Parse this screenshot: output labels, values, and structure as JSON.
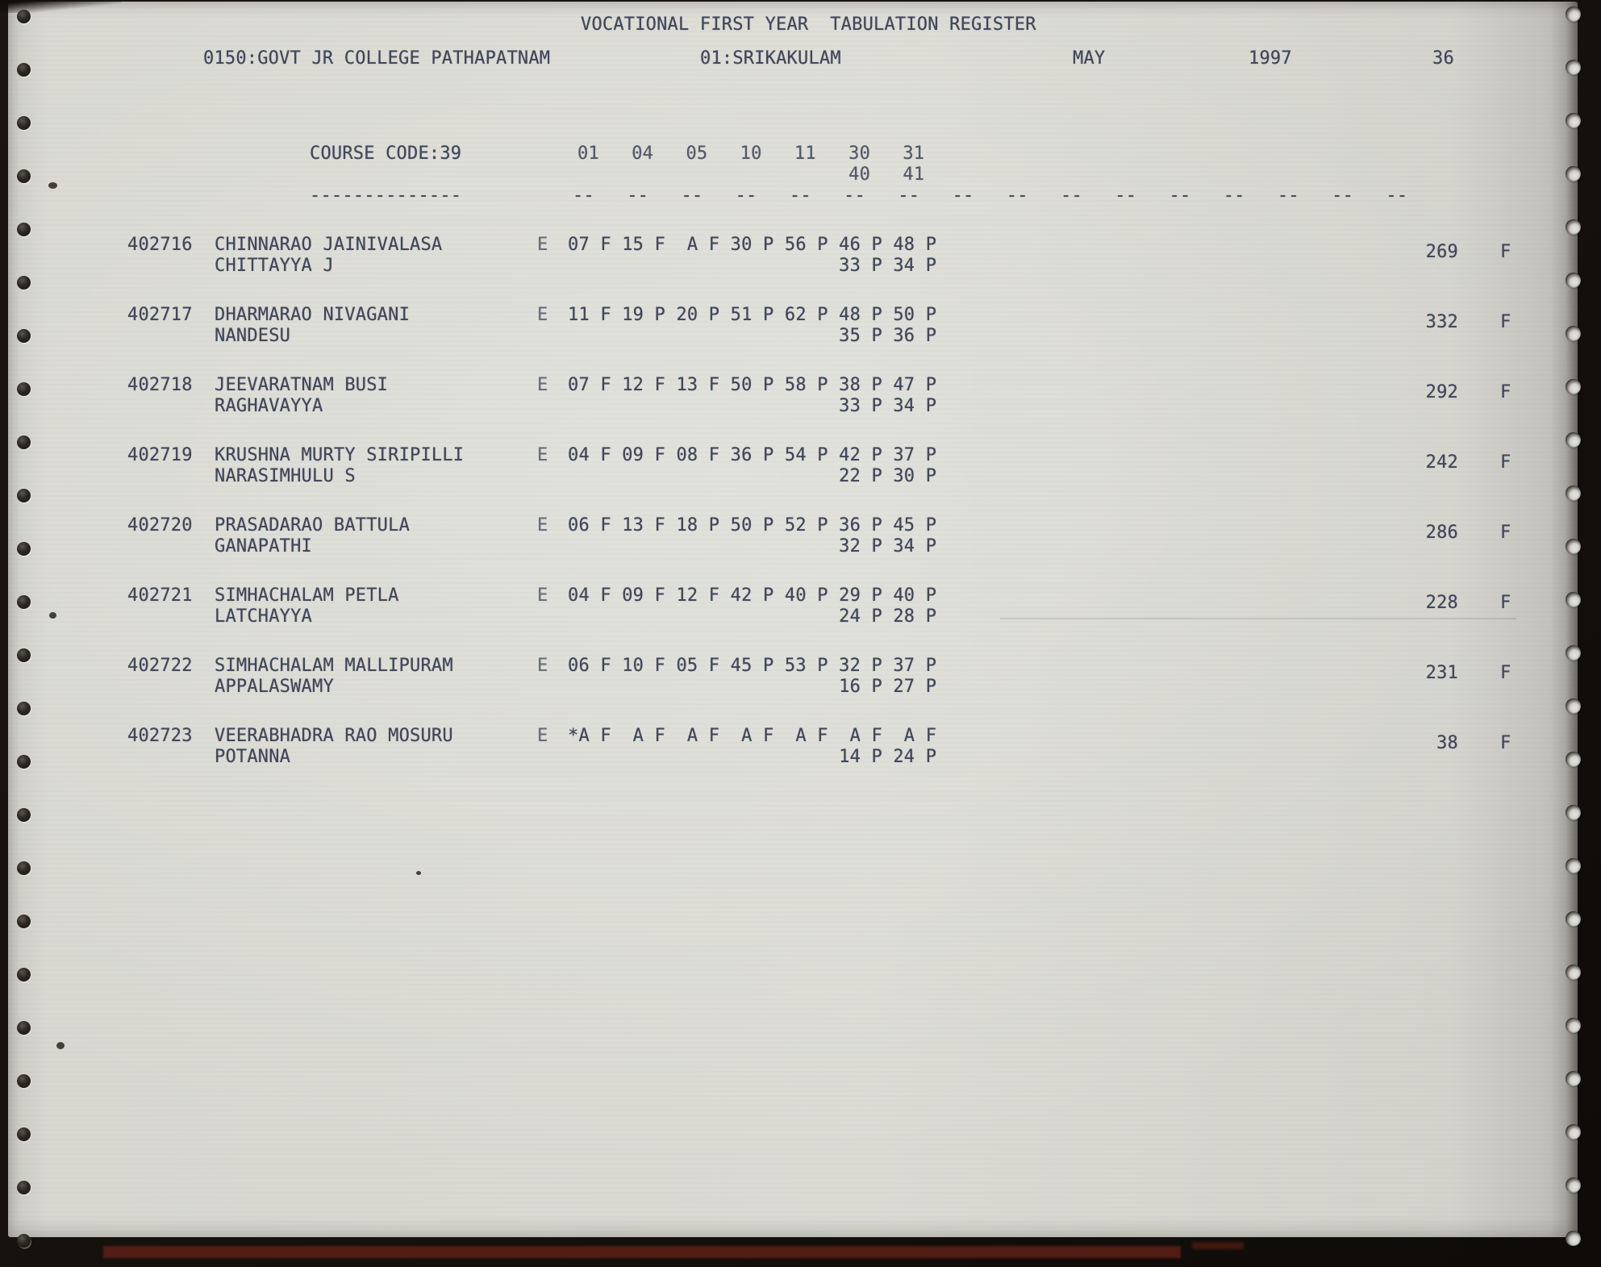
{
  "register": {
    "title": "VOCATIONAL FIRST YEAR  TABULATION REGISTER",
    "college": "0150:GOVT JR COLLEGE PATHAPATNAM",
    "district": "01:SRIKAKULAM",
    "month": "MAY",
    "year": "1997",
    "sheet_number": "36",
    "course_code_label": "COURSE CODE:39",
    "course_code_underline": "--------------",
    "subject_codes_row1": "01   04   05   10   11   30   31",
    "subject_codes_row2": "                         40   41",
    "column_dashes": "--   --   --   --   --   --   --   --   --   --   --   --   --   --   --   --",
    "colors": {
      "ink": "#41475a",
      "paper": "#d6d6cf",
      "edge_bar": "#5a1f16"
    },
    "students": [
      {
        "roll": "402716",
        "name_line1": "CHINNARAO JAINIVALASA",
        "name_line2": "CHITTAYYA J",
        "medium": "E",
        "marks_line1": "07 F 15 F  A F 30 P 56 P 46 P 48 P",
        "marks_line2": "                         33 P 34 P",
        "total": "269",
        "result": "F"
      },
      {
        "roll": "402717",
        "name_line1": "DHARMARAO NIVAGANI",
        "name_line2": "NANDESU",
        "medium": "E",
        "marks_line1": "11 F 19 P 20 P 51 P 62 P 48 P 50 P",
        "marks_line2": "                         35 P 36 P",
        "total": "332",
        "result": "F"
      },
      {
        "roll": "402718",
        "name_line1": "JEEVARATNAM BUSI",
        "name_line2": "RAGHAVAYYA",
        "medium": "E",
        "marks_line1": "07 F 12 F 13 F 50 P 58 P 38 P 47 P",
        "marks_line2": "                         33 P 34 P",
        "total": "292",
        "result": "F"
      },
      {
        "roll": "402719",
        "name_line1": "KRUSHNA MURTY SIRIPILLI",
        "name_line2": "NARASIMHULU S",
        "medium": "E",
        "marks_line1": "04 F 09 F 08 F 36 P 54 P 42 P 37 P",
        "marks_line2": "                         22 P 30 P",
        "total": "242",
        "result": "F"
      },
      {
        "roll": "402720",
        "name_line1": "PRASADARAO BATTULA",
        "name_line2": "GANAPATHI",
        "medium": "E",
        "marks_line1": "06 F 13 F 18 P 50 P 52 P 36 P 45 P",
        "marks_line2": "                         32 P 34 P",
        "total": "286",
        "result": "F"
      },
      {
        "roll": "402721",
        "name_line1": "SIMHACHALAM PETLA",
        "name_line2": "LATCHAYYA",
        "medium": "E",
        "marks_line1": "04 F 09 F 12 F 42 P 40 P 29 P 40 P",
        "marks_line2": "                         24 P 28 P",
        "total": "228",
        "result": "F"
      },
      {
        "roll": "402722",
        "name_line1": "SIMHACHALAM MALLIPURAM",
        "name_line2": "APPALASWAMY",
        "medium": "E",
        "marks_line1": "06 F 10 F 05 F 45 P 53 P 32 P 37 P",
        "marks_line2": "                         16 P 27 P",
        "total": "231",
        "result": "F"
      },
      {
        "roll": "402723",
        "name_line1": "VEERABHADRA RAO MOSURU",
        "name_line2": "POTANNA",
        "medium": "E",
        "marks_line1": "*A F  A F  A F  A F  A F  A F  A F",
        "marks_line2": "                         14 P 24 P",
        "total": "38",
        "result": "F"
      }
    ]
  }
}
